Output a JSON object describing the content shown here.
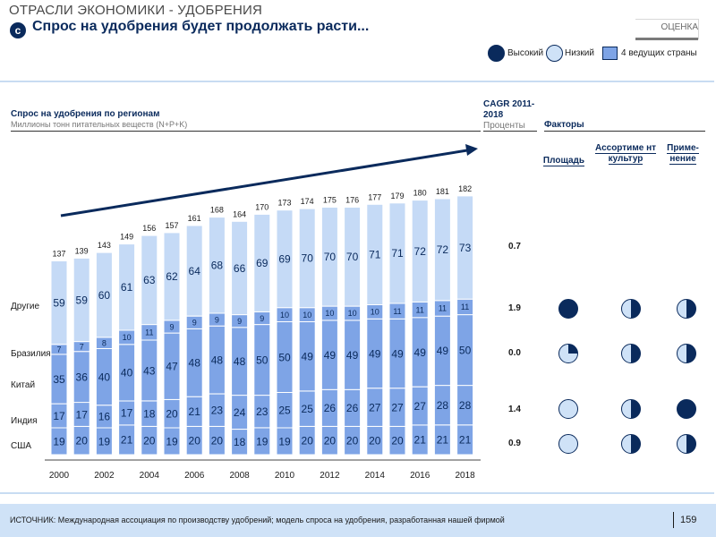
{
  "header": {
    "section_title": "ОТРАСЛИ ЭКОНОМИКИ - УДОБРЕНИЯ",
    "badge": "c",
    "headline": "Спрос на удобрения будет продолжать расти...",
    "rating_label": "ОЦЕНКА"
  },
  "legend": {
    "high": "Высокий",
    "low": "Низкий",
    "top4": "4 ведущих страны"
  },
  "colors": {
    "dark_navy": "#0a2a5c",
    "light_blue": "#cfe2f7",
    "medium_blue": "#7ea4e6",
    "pale_blue": "#c5daf6"
  },
  "cagr": {
    "title": "CAGR 2011-2018",
    "subtitle": "Проценты",
    "values": {
      "other": "0.7",
      "brazil": "1.9",
      "china": "0.0",
      "india": "1.4",
      "usa": "0.9"
    }
  },
  "factors": {
    "title": "Факторы",
    "columns": [
      "Площадь",
      "Ассортиме нт культур",
      "Приме- нение"
    ],
    "rows": [
      {
        "region": "Бразилия",
        "fills": [
          1.0,
          0.5,
          0.5
        ]
      },
      {
        "region": "Китай",
        "fills": [
          0.25,
          0.5,
          0.5
        ]
      },
      {
        "region": "Индия",
        "fills": [
          0.0,
          0.5,
          1.0
        ]
      },
      {
        "region": "США",
        "fills": [
          0.0,
          0.5,
          0.5
        ]
      }
    ]
  },
  "footer": {
    "source": "ИСТОЧНИК: Международная ассоциация по производству удобрений; модель спроса на удобрения, разработанная нашей фирмой",
    "page": "159"
  },
  "chart_data": {
    "type": "bar",
    "stacked": true,
    "title": "Спрос на удобрения по регионам",
    "subtitle": "Миллионы тонн питательных веществ (N+P+K)",
    "categories": [
      "2000",
      "2001",
      "2002",
      "2003",
      "2004",
      "2005",
      "2006",
      "2007",
      "2008",
      "2009",
      "2010",
      "2011",
      "2012",
      "2013",
      "2014",
      "2015",
      "2016",
      "2017",
      "2018"
    ],
    "x_tick_labels": [
      "2000",
      "",
      "2002",
      "",
      "2004",
      "",
      "2006",
      "",
      "2008",
      "",
      "2010",
      "",
      "2012",
      "",
      "2014",
      "",
      "2016",
      "",
      "2018"
    ],
    "totals": [
      137,
      139,
      143,
      149,
      156,
      157,
      161,
      168,
      164,
      170,
      173,
      174,
      175,
      176,
      177,
      179,
      180,
      181,
      182
    ],
    "series": [
      {
        "name": "США",
        "values": [
          19,
          20,
          19,
          21,
          20,
          19,
          20,
          20,
          18,
          19,
          19,
          20,
          20,
          20,
          20,
          20,
          21,
          21,
          21
        ]
      },
      {
        "name": "Индия",
        "values": [
          17,
          17,
          16,
          17,
          18,
          20,
          21,
          23,
          24,
          23,
          25,
          25,
          26,
          26,
          27,
          27,
          27,
          28,
          28
        ]
      },
      {
        "name": "Китай",
        "values": [
          35,
          36,
          40,
          40,
          43,
          47,
          48,
          48,
          48,
          50,
          50,
          49,
          49,
          49,
          49,
          49,
          49,
          49,
          50
        ]
      },
      {
        "name": "Бразилия",
        "values": [
          7,
          7,
          8,
          10,
          11,
          9,
          9,
          9,
          9,
          9,
          10,
          10,
          10,
          10,
          10,
          11,
          11,
          11,
          11
        ]
      },
      {
        "name": "Другие",
        "values": [
          59,
          59,
          60,
          61,
          63,
          62,
          64,
          68,
          66,
          69,
          69,
          70,
          70,
          70,
          71,
          71,
          72,
          72,
          73
        ]
      }
    ],
    "row_labels": [
      "Другие",
      "Бразилия",
      "Китай",
      "Индия",
      "США"
    ],
    "ylim": [
      0,
      200
    ],
    "trend_arrow": true
  }
}
